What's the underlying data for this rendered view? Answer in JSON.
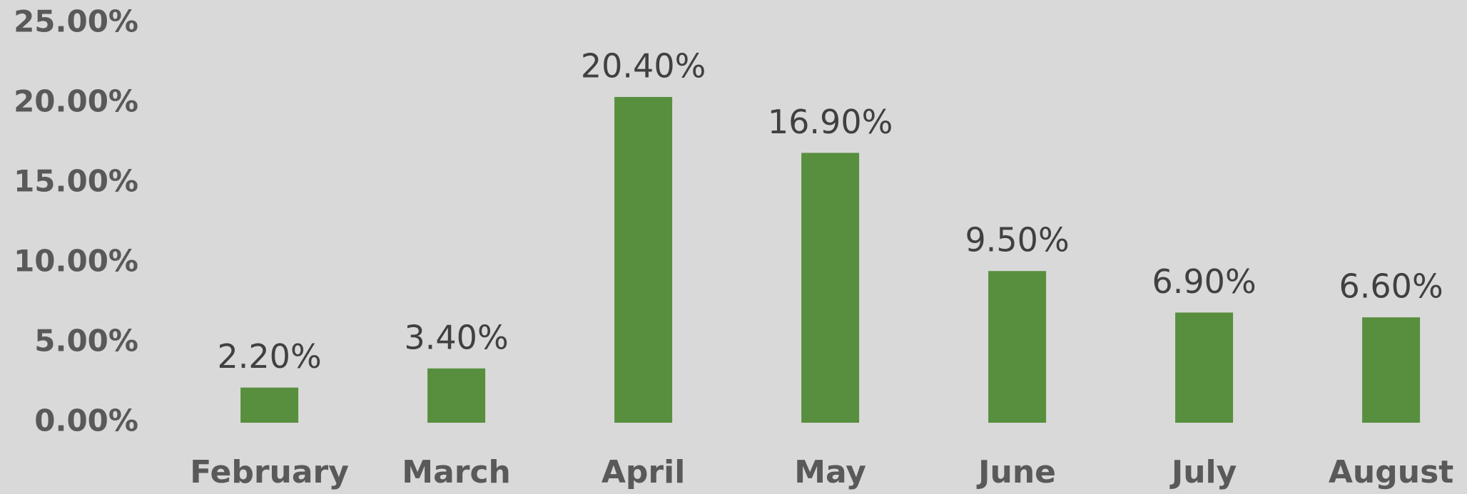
{
  "chart_data": {
    "type": "bar",
    "categories": [
      "February",
      "March",
      "April",
      "May",
      "June",
      "July",
      "August"
    ],
    "values": [
      2.2,
      3.4,
      20.4,
      16.9,
      9.5,
      6.9,
      6.6
    ],
    "value_labels": [
      "2.20%",
      "3.40%",
      "20.40%",
      "16.90%",
      "9.50%",
      "6.90%",
      "6.60%"
    ],
    "color": "#588f3e",
    "ylim": [
      0,
      25
    ],
    "yticks": [
      {
        "value": 0,
        "label": "0.00%"
      },
      {
        "value": 5,
        "label": "5.00%"
      },
      {
        "value": 10,
        "label": "10.00%"
      },
      {
        "value": 15,
        "label": "15.00%"
      },
      {
        "value": 20,
        "label": "20.00%"
      },
      {
        "value": 25,
        "label": "25.00%"
      }
    ],
    "grid": false
  }
}
